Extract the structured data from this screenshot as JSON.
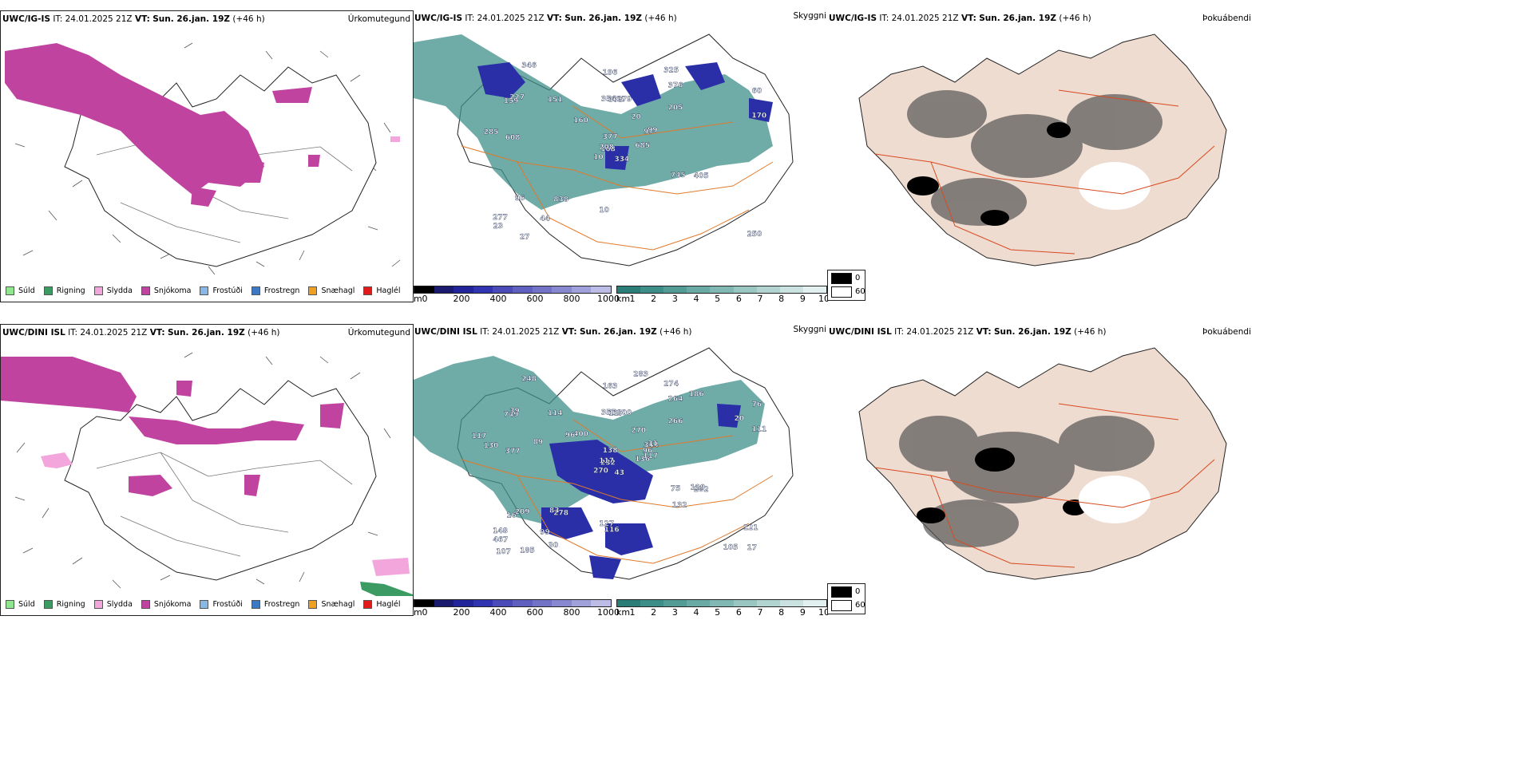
{
  "rows": [
    {
      "precip": {
        "title": "UWC/IG-IS",
        "it": "IT: 24.01.2025 21Z",
        "vt_label": "VT:",
        "vt": "Sun. 26.jan. 19Z",
        "lead": "(+46 h)",
        "product": "Úrkomutegund"
      },
      "vis": {
        "title": "UWC/IG-IS",
        "it": "IT: 24.01.2025 21Z",
        "vt_label": "VT:",
        "vt": "Sun. 26.jan. 19Z",
        "lead": "(+46 h)",
        "product": "Skyggni",
        "labels": [
          "334",
          "159",
          "168",
          "277",
          "97",
          "838",
          "325",
          "179",
          "376",
          "685",
          "346",
          "250",
          "608",
          "60",
          "10",
          "205",
          "27",
          "354",
          "20",
          "96",
          "160",
          "23",
          "44",
          "375",
          "99",
          "405",
          "227",
          "196",
          "285",
          "745",
          "170",
          "208",
          "10",
          "377",
          "151"
        ]
      },
      "cloud": {
        "title": "UWC/IG-IS",
        "it": "IT: 24.01.2025 21Z",
        "vt_label": "VT:",
        "vt": "Sun. 26.jan. 19Z",
        "lead": "(+46 h)",
        "product": "Þokuábendi"
      }
    },
    {
      "precip": {
        "title": "UWC/DINI ISL",
        "it": "IT: 24.01.2025 21Z",
        "vt_label": "VT:",
        "vt": "Sun. 26.jan. 19Z",
        "lead": "(+46 h)",
        "product": "Úrkomutegund"
      },
      "vis": {
        "title": "UWC/DINI ISL",
        "it": "IT: 24.01.2025 21Z",
        "vt_label": "VT:",
        "vt": "Sun. 26.jan. 19Z",
        "lead": "(+46 h)",
        "product": "Skyggni",
        "labels": [
          "43",
          "749",
          "232",
          "148",
          "344",
          "278",
          "274",
          "900",
          "264",
          "136",
          "248",
          "17",
          "377",
          "76",
          "270",
          "266",
          "185",
          "355",
          "270",
          "209",
          "400",
          "467",
          "99",
          "117",
          "31",
          "202",
          "39",
          "163",
          "130",
          "75",
          "111",
          "117",
          "127",
          "138",
          "114",
          "186",
          "83",
          "105",
          "121",
          "129",
          "283",
          "96",
          "89",
          "132",
          "30",
          "117",
          "96",
          "107",
          "116",
          "117",
          "16",
          "20"
        ]
      },
      "cloud": {
        "title": "UWC/DINI ISL",
        "it": "IT: 24.01.2025 21Z",
        "vt_label": "VT:",
        "vt": "Sun. 26.jan. 19Z",
        "lead": "(+46 h)",
        "product": "Þokuábendi"
      }
    }
  ],
  "precip_legend": [
    {
      "label": "Súld",
      "color": "#8fe68f"
    },
    {
      "label": "Rigning",
      "color": "#3c9a63"
    },
    {
      "label": "Slydda",
      "color": "#f2a6dc"
    },
    {
      "label": "Snjókoma",
      "color": "#c0449f"
    },
    {
      "label": "Frostúði",
      "color": "#88b8e8"
    },
    {
      "label": "Frostregn",
      "color": "#3c78c4"
    },
    {
      "label": "Snæhagl",
      "color": "#f0a020"
    },
    {
      "label": "Haglél",
      "color": "#e11a1a"
    }
  ],
  "vis_scale_m": {
    "unit": "m",
    "ticks": [
      "0",
      "200",
      "400",
      "600",
      "800",
      "1000"
    ],
    "colors": [
      "#000000",
      "#1a1a6e",
      "#22259a",
      "#3034b0",
      "#4a4bb8",
      "#5e5fbf",
      "#7273c7",
      "#8888d0",
      "#a0a0da",
      "#bcbce6"
    ]
  },
  "vis_scale_km": {
    "unit": "km",
    "ticks": [
      "1",
      "2",
      "3",
      "4",
      "5",
      "6",
      "7",
      "8",
      "9",
      "10"
    ],
    "colors": [
      "#2b7d77",
      "#3d8e88",
      "#539c96",
      "#6aaaa4",
      "#82b8b3",
      "#9ac6c2",
      "#b2d4d1",
      "#cae2e0",
      "#e2f0ef"
    ]
  },
  "cloud_legend": [
    {
      "label": "0",
      "color": "#000000"
    },
    {
      "label": "60",
      "color": "#ffffff"
    }
  ],
  "colors": {
    "snow": "#c0449f",
    "sleet": "#f2a6dc",
    "rain": "#3c9a63",
    "vis_low": "#2a2fa8",
    "vis_mid": "#3f8f8a",
    "roads": "#e07a2a",
    "coast": "#222222"
  }
}
